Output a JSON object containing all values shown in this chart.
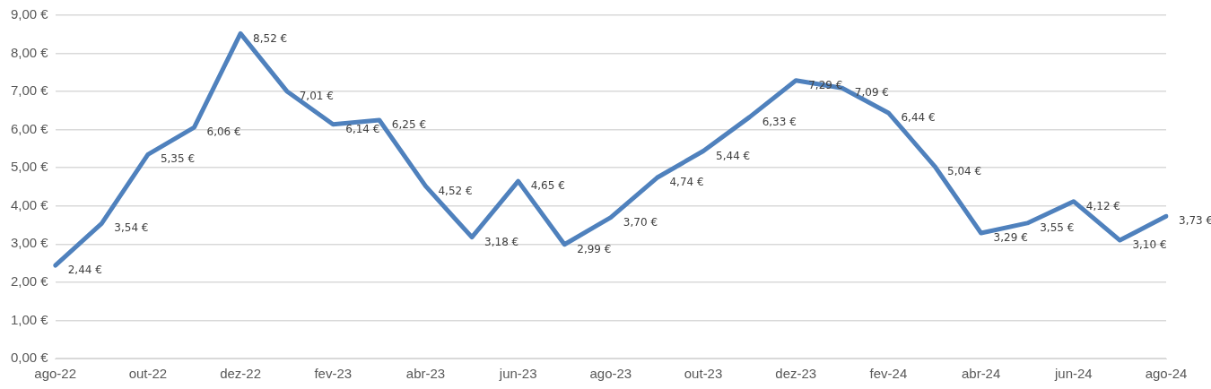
{
  "chart_data": {
    "type": "line",
    "categories": [
      "ago-22",
      null,
      "out-22",
      null,
      "dez-22",
      null,
      "fev-23",
      null,
      "abr-23",
      null,
      "jun-23",
      null,
      "ago-23",
      null,
      "out-23",
      null,
      "dez-23",
      null,
      "fev-24",
      null,
      "abr-24",
      null,
      "jun-24",
      null,
      "ago-24"
    ],
    "series": [
      {
        "color": "#4f81bd",
        "values": [
          2.44,
          3.54,
          5.35,
          6.06,
          8.52,
          7.01,
          6.14,
          6.25,
          4.52,
          3.18,
          4.65,
          2.99,
          3.7,
          4.74,
          5.44,
          6.33,
          7.29,
          7.09,
          6.44,
          5.04,
          3.29,
          3.55,
          4.12,
          3.1,
          3.73
        ],
        "value_labels": [
          "2,44 €",
          "3,54 €",
          "5,35 €",
          "6,06 €",
          "8,52 €",
          "7,01 €",
          "6,14 €",
          "6,25 €",
          "4,52 €",
          "3,18 €",
          "4,65 €",
          "2,99 €",
          "3,70 €",
          "4,74 €",
          "5,44 €",
          "6,33 €",
          "7,29 €",
          "7,09 €",
          "6,44 €",
          "5,04 €",
          "3,29 €",
          "3,55 €",
          "4,12 €",
          "3,10 €",
          "3,73 €"
        ]
      }
    ],
    "ylim": [
      0,
      9
    ],
    "yticks": [
      {
        "value": 0,
        "label": "0,00 €"
      },
      {
        "value": 1,
        "label": "1,00 €"
      },
      {
        "value": 2,
        "label": "2,00 €"
      },
      {
        "value": 3,
        "label": "3,00 €"
      },
      {
        "value": 4,
        "label": "4,00 €"
      },
      {
        "value": 5,
        "label": "5,00 €"
      },
      {
        "value": 6,
        "label": "6,00 €"
      },
      {
        "value": 7,
        "label": "7,00 €"
      },
      {
        "value": 8,
        "label": "8,00 €"
      },
      {
        "value": 9,
        "label": "9,00 €"
      }
    ],
    "grid": "y",
    "legend": false,
    "marker": "none",
    "line_style": "solid"
  }
}
